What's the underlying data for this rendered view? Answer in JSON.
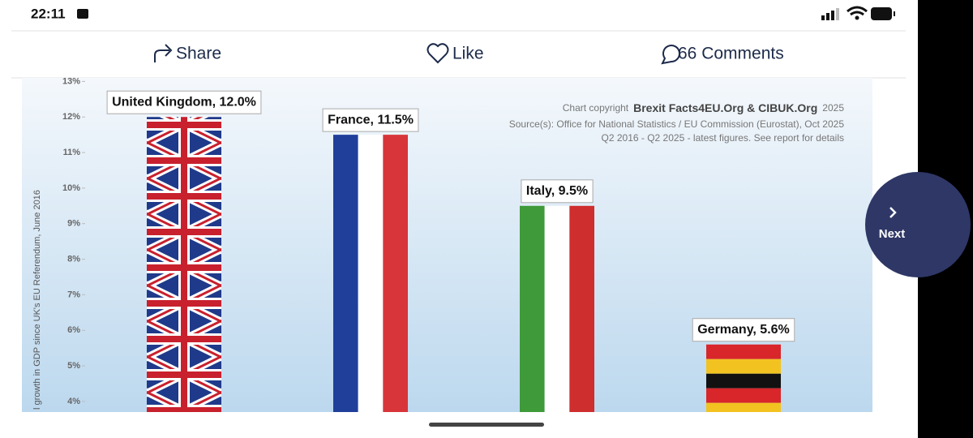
{
  "status_bar": {
    "time": "22:11"
  },
  "actions": {
    "share": "Share",
    "like": "Like",
    "comments": "66 Comments"
  },
  "next_button": "Next",
  "chart_data": {
    "type": "bar",
    "ylabel": "l growth in GDP since UK's EU Referendum, June 2016",
    "values": [
      12.0,
      11.5,
      9.5,
      5.6
    ],
    "value_labels": [
      "United Kingdom, 12.0%",
      "France, 11.5%",
      "Italy, 9.5%",
      "Germany, 5.6%"
    ],
    "ylim": [
      3.7,
      13.1
    ],
    "yticks": [
      {
        "value": 4,
        "label": "4%"
      },
      {
        "value": 5,
        "label": "5%"
      },
      {
        "value": 6,
        "label": "6%"
      },
      {
        "value": 7,
        "label": "7%"
      },
      {
        "value": 8,
        "label": "8%"
      },
      {
        "value": 9,
        "label": "9%"
      },
      {
        "value": 10,
        "label": "10%"
      },
      {
        "value": 11,
        "label": "11%"
      },
      {
        "value": 12,
        "label": "12%"
      },
      {
        "value": 13,
        "label": "13%"
      }
    ],
    "grid": false,
    "bar_patterns": [
      "union-jack",
      "vertical",
      "vertical",
      "horizontal"
    ],
    "bar_colors": [
      [
        "#1f3a8a",
        "#ffffff",
        "#c8202d"
      ],
      [
        "#1f3f9a",
        "#ffffff",
        "#d8353a"
      ],
      [
        "#3f9a3a",
        "#ffffff",
        "#cf2e2e"
      ],
      [
        "#d8262a",
        "#f2c320",
        "#111111"
      ]
    ],
    "credits": {
      "prefix": "Chart copyright",
      "owner": "Brexit Facts4EU.Org & CIBUK.Org",
      "year": "2025",
      "source": "Source(s): Office for National Statistics / EU Commission (Eurostat), Oct 2025",
      "period": "Q2 2016 - Q2 2025 - latest figures. See report for details"
    }
  }
}
